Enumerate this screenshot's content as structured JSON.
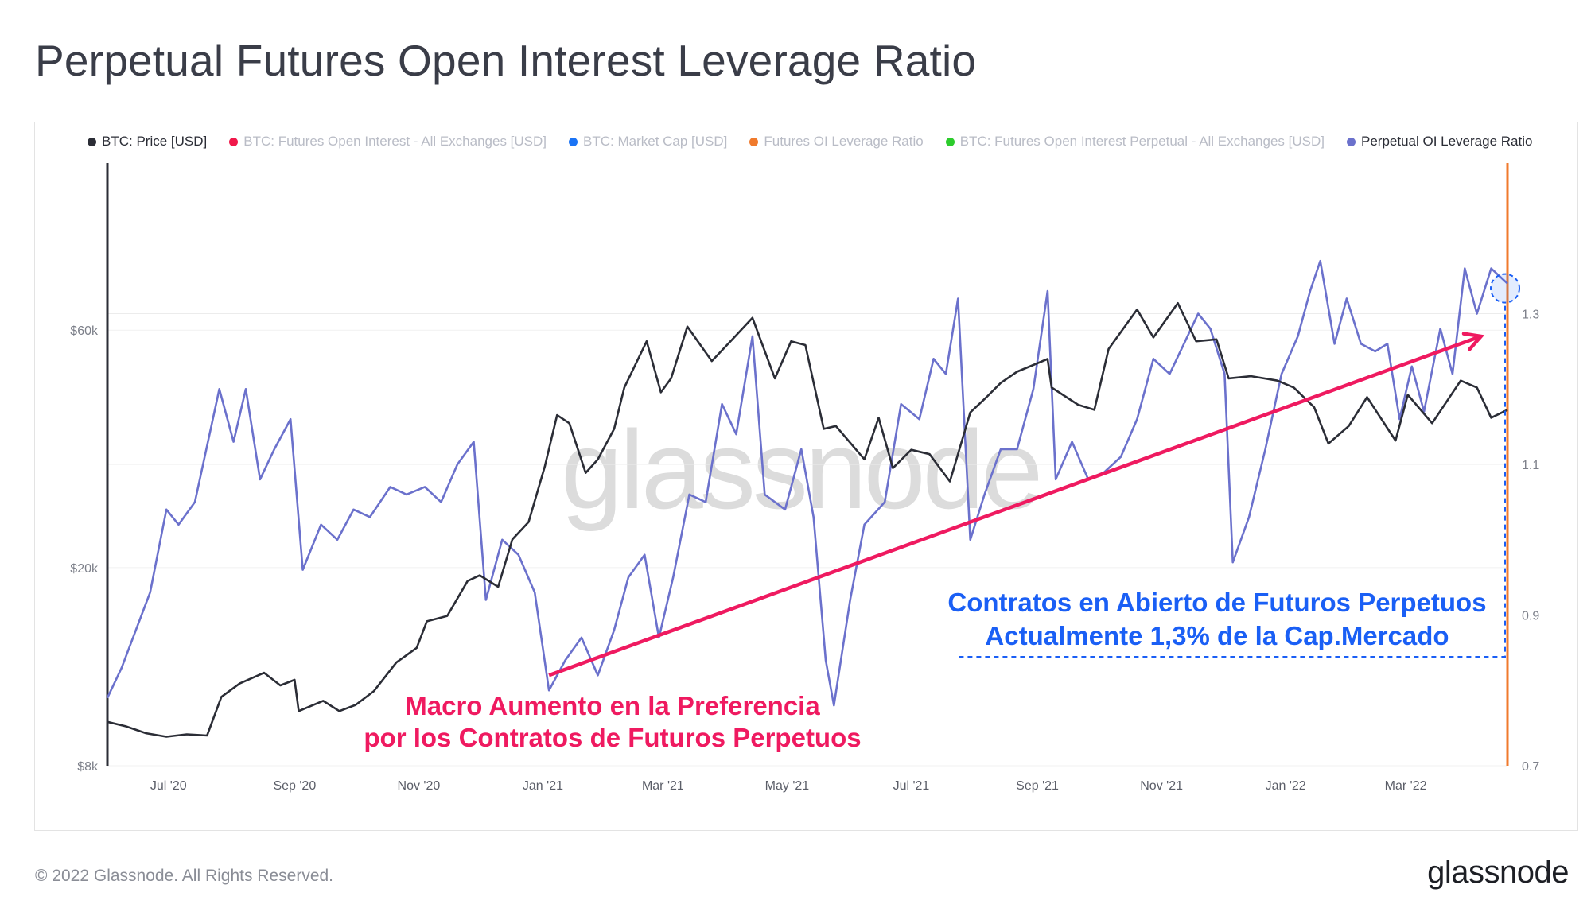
{
  "title": "Perpetual Futures Open Interest Leverage Ratio",
  "legend": [
    {
      "label": "BTC: Price [USD]",
      "color": "#2b2d36",
      "active": true
    },
    {
      "label": "BTC: Futures Open Interest - All Exchanges [USD]",
      "color": "#f0184a",
      "active": false
    },
    {
      "label": "BTC: Market Cap [USD]",
      "color": "#1a73f5",
      "active": false
    },
    {
      "label": "Futures OI Leverage Ratio",
      "color": "#f07a2c",
      "active": false
    },
    {
      "label": "BTC: Futures Open Interest Perpetual - All Exchanges [USD]",
      "color": "#2ccc2c",
      "active": false
    },
    {
      "label": "Perpetual OI Leverage Ratio",
      "color": "#6b71cc",
      "active": true
    }
  ],
  "watermark": "glassnode",
  "annotations": {
    "pink_line1": "Macro Aumento en la Preferencia",
    "pink_line2": "por los Contratos de Futuros Perpetuos",
    "blue_line1": "Contratos en Abierto de Futuros Perpetuos",
    "blue_line2": "Actualmente 1,3% de la Cap.Mercado"
  },
  "footer": {
    "copyright": "© 2022 Glassnode. All Rights Reserved.",
    "logo": "glassnode"
  },
  "colors": {
    "price": "#2b2d36",
    "ratio": "#6b71cc",
    "trend": "#ef1a60",
    "callout": "#1a5ff5",
    "right_axis": "#f07a2c"
  },
  "chart_data": {
    "type": "line",
    "x_ticks": [
      "Jul '20",
      "Sep '20",
      "Nov '20",
      "Jan '21",
      "Mar '21",
      "May '21",
      "Jul '21",
      "Sep '21",
      "Nov '21",
      "Jan '22",
      "Mar '22"
    ],
    "y_left": {
      "scale": "log",
      "ticks": [
        "$8k",
        "$20k",
        "$60k"
      ],
      "tick_values": [
        8000,
        20000,
        60000
      ],
      "range": [
        8000,
        130000
      ]
    },
    "y_right": {
      "scale": "linear",
      "ticks": [
        "0.7",
        "0.9",
        "1.1",
        "1.3"
      ],
      "tick_values": [
        0.7,
        0.9,
        1.1,
        1.3
      ],
      "range": [
        0.7,
        1.5
      ]
    },
    "x_range": [
      "2020-06-01",
      "2022-04-20"
    ],
    "series": [
      {
        "name": "BTC: Price [USD]",
        "axis": "left",
        "points": [
          [
            "2020-06-01",
            9800
          ],
          [
            "2020-06-10",
            9600
          ],
          [
            "2020-06-20",
            9300
          ],
          [
            "2020-06-30",
            9150
          ],
          [
            "2020-07-10",
            9250
          ],
          [
            "2020-07-20",
            9200
          ],
          [
            "2020-07-27",
            11000
          ],
          [
            "2020-08-05",
            11700
          ],
          [
            "2020-08-17",
            12300
          ],
          [
            "2020-08-25",
            11600
          ],
          [
            "2020-09-01",
            11900
          ],
          [
            "2020-09-03",
            10300
          ],
          [
            "2020-09-15",
            10800
          ],
          [
            "2020-09-23",
            10300
          ],
          [
            "2020-10-01",
            10600
          ],
          [
            "2020-10-10",
            11300
          ],
          [
            "2020-10-21",
            12900
          ],
          [
            "2020-10-31",
            13800
          ],
          [
            "2020-11-05",
            15600
          ],
          [
            "2020-11-15",
            16000
          ],
          [
            "2020-11-25",
            18800
          ],
          [
            "2020-12-01",
            19300
          ],
          [
            "2020-12-10",
            18300
          ],
          [
            "2020-12-17",
            22800
          ],
          [
            "2020-12-25",
            24700
          ],
          [
            "2021-01-02",
            32000
          ],
          [
            "2021-01-08",
            40500
          ],
          [
            "2021-01-14",
            39000
          ],
          [
            "2021-01-22",
            31000
          ],
          [
            "2021-01-28",
            33000
          ],
          [
            "2021-02-05",
            38000
          ],
          [
            "2021-02-10",
            46000
          ],
          [
            "2021-02-21",
            57000
          ],
          [
            "2021-02-28",
            45000
          ],
          [
            "2021-03-05",
            48000
          ],
          [
            "2021-03-13",
            61000
          ],
          [
            "2021-03-25",
            52000
          ],
          [
            "2021-04-05",
            58000
          ],
          [
            "2021-04-14",
            63500
          ],
          [
            "2021-04-25",
            48000
          ],
          [
            "2021-05-03",
            57000
          ],
          [
            "2021-05-10",
            56000
          ],
          [
            "2021-05-19",
            38000
          ],
          [
            "2021-05-25",
            38500
          ],
          [
            "2021-06-08",
            33000
          ],
          [
            "2021-06-15",
            40000
          ],
          [
            "2021-06-22",
            31700
          ],
          [
            "2021-07-01",
            34500
          ],
          [
            "2021-07-10",
            33800
          ],
          [
            "2021-07-20",
            29800
          ],
          [
            "2021-07-30",
            41000
          ],
          [
            "2021-08-07",
            44000
          ],
          [
            "2021-08-14",
            47000
          ],
          [
            "2021-08-22",
            49500
          ],
          [
            "2021-09-06",
            52500
          ],
          [
            "2021-09-08",
            46000
          ],
          [
            "2021-09-21",
            42500
          ],
          [
            "2021-09-29",
            41500
          ],
          [
            "2021-10-06",
            55000
          ],
          [
            "2021-10-20",
            66000
          ],
          [
            "2021-10-28",
            58000
          ],
          [
            "2021-11-09",
            68000
          ],
          [
            "2021-11-18",
            57000
          ],
          [
            "2021-11-28",
            57500
          ],
          [
            "2021-12-04",
            48000
          ],
          [
            "2021-12-15",
            48500
          ],
          [
            "2021-12-28",
            47500
          ],
          [
            "2022-01-05",
            46000
          ],
          [
            "2022-01-15",
            42000
          ],
          [
            "2022-01-22",
            35500
          ],
          [
            "2022-02-01",
            38500
          ],
          [
            "2022-02-10",
            44000
          ],
          [
            "2022-02-24",
            36000
          ],
          [
            "2022-03-02",
            44500
          ],
          [
            "2022-03-14",
            39000
          ],
          [
            "2022-03-28",
            47500
          ],
          [
            "2022-04-05",
            46000
          ],
          [
            "2022-04-12",
            40000
          ],
          [
            "2022-04-20",
            41500
          ]
        ]
      },
      {
        "name": "Perpetual OI Leverage Ratio",
        "axis": "right",
        "points": [
          [
            "2020-06-01",
            0.79
          ],
          [
            "2020-06-08",
            0.83
          ],
          [
            "2020-06-15",
            0.88
          ],
          [
            "2020-06-22",
            0.93
          ],
          [
            "2020-06-30",
            1.04
          ],
          [
            "2020-07-06",
            1.02
          ],
          [
            "2020-07-14",
            1.05
          ],
          [
            "2020-07-22",
            1.15
          ],
          [
            "2020-07-26",
            1.2
          ],
          [
            "2020-08-02",
            1.13
          ],
          [
            "2020-08-08",
            1.2
          ],
          [
            "2020-08-15",
            1.08
          ],
          [
            "2020-08-22",
            1.12
          ],
          [
            "2020-08-30",
            1.16
          ],
          [
            "2020-09-05",
            0.96
          ],
          [
            "2020-09-14",
            1.02
          ],
          [
            "2020-09-22",
            1.0
          ],
          [
            "2020-09-30",
            1.04
          ],
          [
            "2020-10-08",
            1.03
          ],
          [
            "2020-10-18",
            1.07
          ],
          [
            "2020-10-26",
            1.06
          ],
          [
            "2020-11-04",
            1.07
          ],
          [
            "2020-11-12",
            1.05
          ],
          [
            "2020-11-20",
            1.1
          ],
          [
            "2020-11-28",
            1.13
          ],
          [
            "2020-12-04",
            0.92
          ],
          [
            "2020-12-12",
            1.0
          ],
          [
            "2020-12-20",
            0.98
          ],
          [
            "2020-12-28",
            0.93
          ],
          [
            "2021-01-04",
            0.8
          ],
          [
            "2021-01-12",
            0.84
          ],
          [
            "2021-01-20",
            0.87
          ],
          [
            "2021-01-28",
            0.82
          ],
          [
            "2021-02-05",
            0.88
          ],
          [
            "2021-02-12",
            0.95
          ],
          [
            "2021-02-20",
            0.98
          ],
          [
            "2021-02-27",
            0.87
          ],
          [
            "2021-03-06",
            0.95
          ],
          [
            "2021-03-14",
            1.06
          ],
          [
            "2021-03-22",
            1.05
          ],
          [
            "2021-03-30",
            1.18
          ],
          [
            "2021-04-06",
            1.14
          ],
          [
            "2021-04-14",
            1.27
          ],
          [
            "2021-04-20",
            1.06
          ],
          [
            "2021-04-30",
            1.04
          ],
          [
            "2021-05-08",
            1.12
          ],
          [
            "2021-05-14",
            1.03
          ],
          [
            "2021-05-20",
            0.84
          ],
          [
            "2021-05-24",
            0.78
          ],
          [
            "2021-06-01",
            0.92
          ],
          [
            "2021-06-08",
            1.02
          ],
          [
            "2021-06-18",
            1.05
          ],
          [
            "2021-06-26",
            1.18
          ],
          [
            "2021-07-05",
            1.16
          ],
          [
            "2021-07-12",
            1.24
          ],
          [
            "2021-07-18",
            1.22
          ],
          [
            "2021-07-24",
            1.32
          ],
          [
            "2021-07-30",
            1.0
          ],
          [
            "2021-08-06",
            1.06
          ],
          [
            "2021-08-14",
            1.12
          ],
          [
            "2021-08-22",
            1.12
          ],
          [
            "2021-08-30",
            1.2
          ],
          [
            "2021-09-06",
            1.33
          ],
          [
            "2021-09-10",
            1.08
          ],
          [
            "2021-09-18",
            1.13
          ],
          [
            "2021-09-26",
            1.08
          ],
          [
            "2021-10-04",
            1.09
          ],
          [
            "2021-10-12",
            1.11
          ],
          [
            "2021-10-20",
            1.16
          ],
          [
            "2021-10-28",
            1.24
          ],
          [
            "2021-11-05",
            1.22
          ],
          [
            "2021-11-12",
            1.26
          ],
          [
            "2021-11-19",
            1.3
          ],
          [
            "2021-11-25",
            1.28
          ],
          [
            "2021-12-02",
            1.22
          ],
          [
            "2021-12-06",
            0.97
          ],
          [
            "2021-12-14",
            1.03
          ],
          [
            "2021-12-22",
            1.12
          ],
          [
            "2021-12-30",
            1.22
          ],
          [
            "2022-01-07",
            1.27
          ],
          [
            "2022-01-13",
            1.33
          ],
          [
            "2022-01-18",
            1.37
          ],
          [
            "2022-01-25",
            1.26
          ],
          [
            "2022-01-31",
            1.32
          ],
          [
            "2022-02-07",
            1.26
          ],
          [
            "2022-02-14",
            1.25
          ],
          [
            "2022-02-20",
            1.26
          ],
          [
            "2022-02-26",
            1.16
          ],
          [
            "2022-03-04",
            1.23
          ],
          [
            "2022-03-10",
            1.17
          ],
          [
            "2022-03-18",
            1.28
          ],
          [
            "2022-03-24",
            1.22
          ],
          [
            "2022-03-30",
            1.36
          ],
          [
            "2022-04-05",
            1.3
          ],
          [
            "2022-04-12",
            1.36
          ],
          [
            "2022-04-20",
            1.34
          ]
        ]
      }
    ],
    "trend_arrow": {
      "from": [
        "2021-01-04",
        0.82
      ],
      "to": [
        "2022-04-07",
        1.27
      ]
    }
  }
}
